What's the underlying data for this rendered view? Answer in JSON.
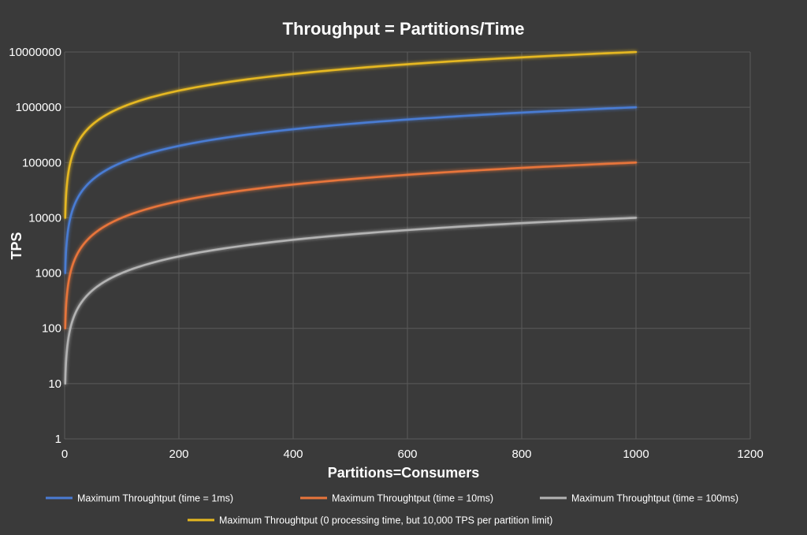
{
  "chart_data": {
    "type": "line",
    "title": "Throughput = Partitions/Time",
    "xlabel": "Partitions=Consumers",
    "ylabel": "TPS",
    "x_scale": "linear",
    "y_scale": "log",
    "xlim": [
      0,
      1200
    ],
    "ylim": [
      1,
      10000000
    ],
    "x_ticks": [
      "0",
      "200",
      "400",
      "600",
      "800",
      "1000",
      "1200"
    ],
    "y_ticks": [
      "1",
      "10",
      "100",
      "1000",
      "10000",
      "100000",
      "1000000",
      "10000000"
    ],
    "grid": true,
    "legend_position": "bottom",
    "x": [
      1,
      2,
      5,
      10,
      20,
      50,
      100,
      200,
      500,
      1000
    ],
    "series": [
      {
        "name": "Maximum Throughtput (time = 1ms)",
        "color": "#4a7bd3",
        "values": [
          1000,
          2000,
          5000,
          10000,
          20000,
          50000,
          100000,
          200000,
          500000,
          1000000
        ]
      },
      {
        "name": "Maximum Throughtput (time = 10ms)",
        "color": "#e8743b",
        "values": [
          100,
          200,
          500,
          1000,
          2000,
          5000,
          10000,
          20000,
          50000,
          100000
        ]
      },
      {
        "name": "Maximum Throughtput (time = 100ms)",
        "color": "#b3b3b3",
        "values": [
          10,
          20,
          50,
          100,
          200,
          500,
          1000,
          2000,
          5000,
          10000
        ]
      },
      {
        "name": "Maximum Throughtput (0 processing time, but 10,000 TPS per partition limit)",
        "color": "#e6b820",
        "values": [
          10000,
          20000,
          50000,
          100000,
          200000,
          500000,
          1000000,
          2000000,
          5000000,
          10000000
        ]
      }
    ]
  }
}
